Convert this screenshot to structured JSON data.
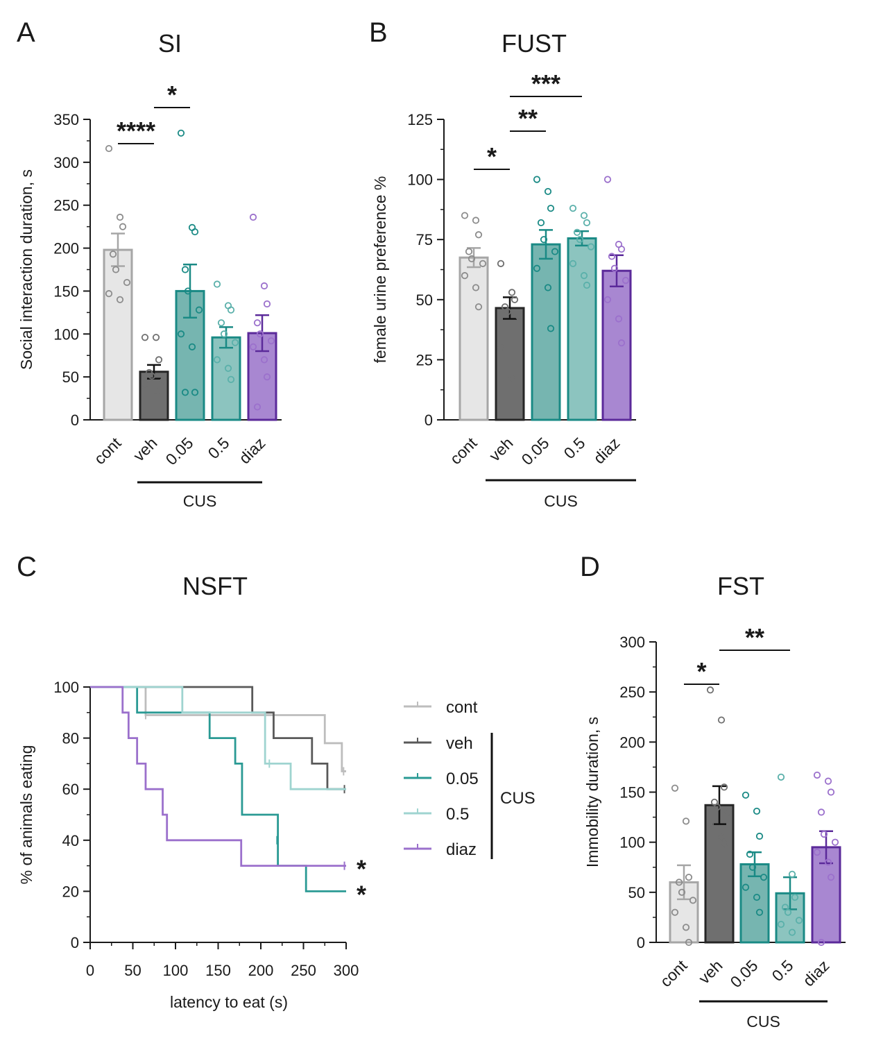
{
  "colors": {
    "cont_fill": "#e6e6e6",
    "cont_edge": "#a6a6a6",
    "cont_dot": "#8c8c8c",
    "veh_fill": "#6f6f6f",
    "veh_edge": "#262626",
    "veh_dot": "#6f6f6f",
    "d005_fill": "#76b5b0",
    "d005_edge": "#1a8a85",
    "d005_dot": "#1a8a85",
    "d05_fill": "#8cc4bf",
    "d05_edge": "#1a8a85",
    "d05_dot": "#5ab0aa",
    "diaz_fill": "#a887d1",
    "diaz_edge": "#5b2a9a",
    "diaz_dot": "#9b70cc",
    "line_cont": "#bdbdbd",
    "line_veh": "#595959",
    "line_005": "#2a9a94",
    "line_05": "#9fd4d0",
    "line_diaz": "#9b70cc"
  },
  "chart_data": [
    {
      "id": "A",
      "letter": "A",
      "type": "bar",
      "title": "SI",
      "ylabel": "Social interaction duration, s",
      "ylim": [
        0,
        350
      ],
      "yticks": [
        "0",
        "50",
        "100",
        "150",
        "200",
        "250",
        "300",
        "350"
      ],
      "categories": [
        "cont",
        "veh",
        "0.05",
        "0.5",
        "diaz"
      ],
      "group_label": "CUS",
      "values": [
        198,
        56,
        150,
        96,
        101
      ],
      "sem": [
        19,
        8,
        31,
        12,
        21
      ],
      "points": [
        [
          316,
          236,
          225,
          193,
          175,
          160,
          147,
          140
        ],
        [
          96,
          96,
          70,
          55,
          51,
          45,
          40,
          33
        ],
        [
          334,
          224,
          219,
          175,
          150,
          128,
          100,
          85,
          32,
          32
        ],
        [
          158,
          133,
          128,
          113,
          100,
          90,
          70,
          60,
          47
        ],
        [
          236,
          156,
          135,
          113,
          100,
          92,
          85,
          70,
          50,
          15
        ]
      ],
      "significance": [
        {
          "from": 0,
          "to": 1,
          "label": "****"
        },
        {
          "from": 1,
          "to": 2,
          "label": "*"
        }
      ]
    },
    {
      "id": "B",
      "letter": "B",
      "type": "bar",
      "title": "FUST",
      "ylabel": "female urine preference %",
      "ylim": [
        0,
        125
      ],
      "yticks": [
        "0",
        "25",
        "50",
        "75",
        "100",
        "125"
      ],
      "categories": [
        "cont",
        "veh",
        "0.05",
        "0.5",
        "diaz"
      ],
      "group_label": "CUS",
      "values": [
        67.5,
        46.5,
        73,
        75.5,
        62
      ],
      "sem": [
        4,
        4.5,
        6,
        3,
        6.5
      ],
      "points": [
        [
          85,
          83,
          77,
          70,
          67,
          65,
          60,
          55,
          47
        ],
        [
          65,
          53,
          50,
          47,
          45,
          43,
          30,
          17
        ],
        [
          100,
          95,
          88,
          82,
          75,
          70,
          63,
          55,
          38
        ],
        [
          88,
          85,
          82,
          78,
          75,
          72,
          65,
          60,
          56
        ],
        [
          100,
          73,
          71,
          68,
          63,
          58,
          50,
          42,
          32
        ]
      ],
      "significance": [
        {
          "from": 0,
          "to": 1,
          "label": "*"
        },
        {
          "from": 1,
          "to": 2,
          "label": "**"
        },
        {
          "from": 1,
          "to": 3,
          "label": "***"
        }
      ]
    },
    {
      "id": "C",
      "letter": "C",
      "type": "line",
      "title": "NSFT",
      "xlabel": "latency to eat (s)",
      "ylabel": "% of animals eating",
      "xlim": [
        0,
        300
      ],
      "ylim": [
        0,
        100
      ],
      "xticks": [
        "0",
        "50",
        "100",
        "150",
        "200",
        "250",
        "300"
      ],
      "yticks": [
        "0",
        "20",
        "40",
        "60",
        "80",
        "100"
      ],
      "legend_group_label": "CUS",
      "series": [
        {
          "name": "cont",
          "x": [
            0,
            65,
            275,
            295,
            300
          ],
          "y": [
            100,
            89,
            78,
            67,
            67
          ],
          "censor": [
            [
              65,
              89
            ],
            [
              297,
              67
            ]
          ]
        },
        {
          "name": "veh",
          "x": [
            0,
            190,
            215,
            260,
            278,
            300
          ],
          "y": [
            100,
            90,
            80,
            70,
            60,
            60
          ],
          "censor": [
            [
              298,
              60
            ]
          ]
        },
        {
          "name": "0.05",
          "x": [
            0,
            55,
            140,
            170,
            178,
            220,
            253,
            300
          ],
          "y": [
            100,
            90,
            80,
            70,
            50,
            30,
            20,
            20
          ],
          "censor": [
            [
              219,
              40
            ]
          ]
        },
        {
          "name": "0.5",
          "x": [
            0,
            108,
            205,
            235,
            300
          ],
          "y": [
            100,
            90,
            70,
            60,
            60
          ],
          "censor": [
            [
              108,
              95
            ],
            [
              210,
              70
            ]
          ]
        },
        {
          "name": "diaz",
          "x": [
            0,
            38,
            45,
            55,
            65,
            85,
            90,
            177,
            300
          ],
          "y": [
            100,
            90,
            80,
            70,
            60,
            50,
            40,
            30,
            30
          ],
          "censor": [
            [
              298,
              30
            ]
          ]
        }
      ],
      "annotations": [
        {
          "series": "diaz",
          "label": "*"
        },
        {
          "series": "0.05",
          "label": "*"
        }
      ]
    },
    {
      "id": "D",
      "letter": "D",
      "type": "bar",
      "title": "FST",
      "ylabel": "Immobility duration, s",
      "ylim": [
        0,
        300
      ],
      "yticks": [
        "0",
        "50",
        "100",
        "150",
        "200",
        "250",
        "300"
      ],
      "categories": [
        "cont",
        "veh",
        "0.05",
        "0.5",
        "diaz"
      ],
      "group_label": "CUS",
      "values": [
        60,
        137,
        78,
        49,
        95
      ],
      "sem": [
        17,
        19,
        12,
        16,
        16
      ],
      "points": [
        [
          154,
          121,
          65,
          60,
          50,
          42,
          30,
          15,
          0
        ],
        [
          252,
          222,
          155,
          140,
          135,
          130,
          118,
          105,
          98
        ],
        [
          147,
          131,
          106,
          88,
          75,
          65,
          55,
          45,
          30
        ],
        [
          165,
          68,
          45,
          35,
          30,
          22,
          18,
          10
        ],
        [
          167,
          161,
          150,
          130,
          108,
          100,
          90,
          80,
          65,
          0
        ]
      ],
      "significance": [
        {
          "from": 0,
          "to": 1,
          "label": "*"
        },
        {
          "from": 1,
          "to": 3,
          "label": "**"
        }
      ]
    }
  ]
}
